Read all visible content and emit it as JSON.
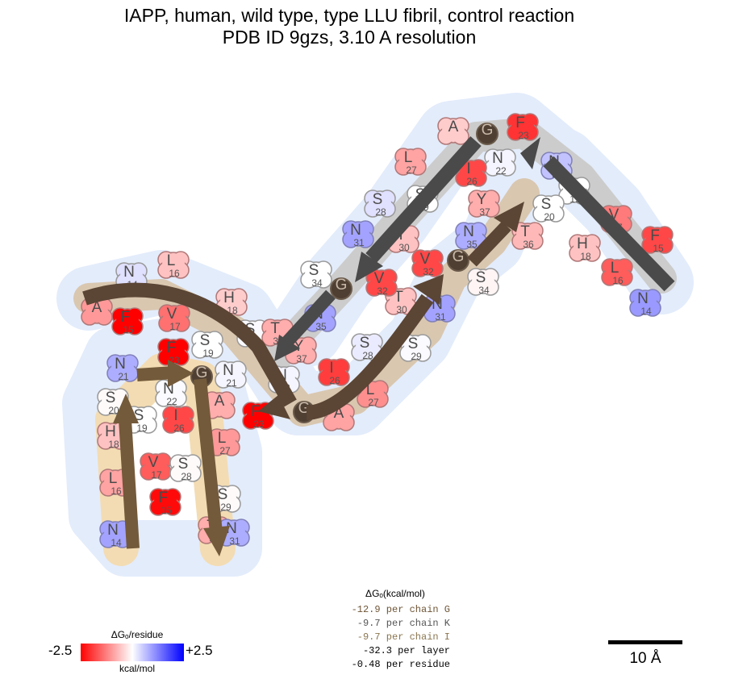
{
  "title": {
    "line1": "IAPP, human, wild type, type LLU fibril, control reaction",
    "line2": "PDB ID 9gzs, 3.10 A resolution"
  },
  "energy_summary": {
    "header": "ΔGₒ(kcal/mol)",
    "rows": [
      {
        "text": "-12.9 per chain G",
        "color": "#6e5536"
      },
      {
        "text": "-9.7 per chain K",
        "color": "#555555"
      },
      {
        "text": "-9.7 per chain I",
        "color": "#8a7650"
      },
      {
        "text": "-32.3 per layer",
        "color": "#000000"
      },
      {
        "text": "-0.48 per residue",
        "color": "#000000"
      }
    ]
  },
  "legend": {
    "title": "ΔGₒ/residue",
    "min_label": "-2.5",
    "max_label": "+2.5",
    "unit": "kcal/mol"
  },
  "scale_bar": {
    "label": "10 Å"
  },
  "colors": {
    "halo": "#e3ecfb",
    "chain_G": "#7a5e3a",
    "chain_K": "#4a4a4a",
    "chain_I": "#5a4632",
    "region_G": "#f3dcb3",
    "region_K": "#c8c8c8",
    "region_I": "#c9b49a"
  },
  "chains": [
    {
      "id": "G",
      "residues": [
        {
          "aa": "N",
          "num": "14",
          "dg": 0.9
        },
        {
          "aa": "L",
          "num": "16",
          "dg": -0.9
        },
        {
          "aa": "H",
          "num": "18",
          "dg": -0.6
        },
        {
          "aa": "S",
          "num": "20",
          "dg": -0.05
        },
        {
          "aa": "N",
          "num": "21",
          "dg": 0.8
        },
        {
          "aa": "F",
          "num": "23",
          "dg": -2.5
        },
        {
          "aa": "V",
          "num": "17",
          "dg": -1.6
        },
        {
          "aa": "F",
          "num": "15",
          "dg": -2.4
        },
        {
          "aa": "S",
          "num": "19",
          "dg": 0.0
        },
        {
          "aa": "N",
          "num": "22",
          "dg": 0.05
        },
        {
          "aa": "I",
          "num": "26",
          "dg": -1.8
        },
        {
          "aa": "S",
          "num": "28",
          "dg": -0.05
        },
        {
          "aa": "G",
          "num": "",
          "dg": 0.0
        },
        {
          "aa": "A",
          "num": "",
          "dg": -0.8
        },
        {
          "aa": "L",
          "num": "27",
          "dg": -1.0
        },
        {
          "aa": "S",
          "num": "29",
          "dg": -0.05
        },
        {
          "aa": "T",
          "num": "30",
          "dg": -0.8
        },
        {
          "aa": "N",
          "num": "31",
          "dg": 0.8
        }
      ]
    },
    {
      "id": "I",
      "residues": [
        {
          "aa": "A",
          "num": "",
          "dg": -1.0
        },
        {
          "aa": "F",
          "num": "15",
          "dg": -2.5
        },
        {
          "aa": "N",
          "num": "14",
          "dg": 0.3
        },
        {
          "aa": "L",
          "num": "16",
          "dg": -0.6
        },
        {
          "aa": "V",
          "num": "17",
          "dg": -1.4
        },
        {
          "aa": "H",
          "num": "18",
          "dg": -0.5
        },
        {
          "aa": "S",
          "num": "19",
          "dg": 0.0
        },
        {
          "aa": "S",
          "num": "20",
          "dg": 0.05
        },
        {
          "aa": "N",
          "num": "21",
          "dg": 0.1
        },
        {
          "aa": "F",
          "num": "23",
          "dg": -2.5
        },
        {
          "aa": "G",
          "num": "",
          "dg": 0.0
        },
        {
          "aa": "A",
          "num": "",
          "dg": -0.9
        },
        {
          "aa": "N",
          "num": "22",
          "dg": 0.1
        },
        {
          "aa": "T",
          "num": "36",
          "dg": -0.8
        },
        {
          "aa": "N",
          "num": "35",
          "dg": 0.9
        },
        {
          "aa": "Y",
          "num": "37",
          "dg": -0.8
        },
        {
          "aa": "I",
          "num": "26",
          "dg": -1.9
        },
        {
          "aa": "L",
          "num": "27",
          "dg": -1.1
        },
        {
          "aa": "S",
          "num": "28",
          "dg": 0.2
        },
        {
          "aa": "S",
          "num": "29",
          "dg": 0.05
        },
        {
          "aa": "T",
          "num": "30",
          "dg": -0.6
        },
        {
          "aa": "N",
          "num": "31",
          "dg": 0.9
        },
        {
          "aa": "V",
          "num": "32",
          "dg": -1.8
        },
        {
          "aa": "G",
          "num": "",
          "dg": 0.0
        },
        {
          "aa": "S",
          "num": "34",
          "dg": -0.1
        }
      ]
    },
    {
      "id": "K",
      "residues": [
        {
          "aa": "N",
          "num": "14",
          "dg": 1.0
        },
        {
          "aa": "F",
          "num": "15",
          "dg": -1.8
        },
        {
          "aa": "L",
          "num": "16",
          "dg": -1.6
        },
        {
          "aa": "V",
          "num": "17",
          "dg": -1.3
        },
        {
          "aa": "H",
          "num": "18",
          "dg": -0.6
        },
        {
          "aa": "S",
          "num": "19",
          "dg": 0.0
        },
        {
          "aa": "S",
          "num": "20",
          "dg": 0.0
        },
        {
          "aa": "N",
          "num": "21",
          "dg": 0.6
        },
        {
          "aa": "F",
          "num": "23",
          "dg": -2.0
        },
        {
          "aa": "G",
          "num": "",
          "dg": 0.0
        },
        {
          "aa": "A",
          "num": "",
          "dg": -0.5
        },
        {
          "aa": "N",
          "num": "22",
          "dg": 0.1
        },
        {
          "aa": "I",
          "num": "26",
          "dg": -1.8
        },
        {
          "aa": "L",
          "num": "27",
          "dg": -0.9
        },
        {
          "aa": "S",
          "num": "28",
          "dg": 0.3
        },
        {
          "aa": "S",
          "num": "29",
          "dg": 0.0
        },
        {
          "aa": "Y",
          "num": "37",
          "dg": -0.8
        },
        {
          "aa": "T",
          "num": "36",
          "dg": -0.7
        },
        {
          "aa": "N",
          "num": "35",
          "dg": 0.8
        },
        {
          "aa": "T",
          "num": "30",
          "dg": -0.6
        },
        {
          "aa": "N",
          "num": "31",
          "dg": 0.9
        },
        {
          "aa": "V",
          "num": "32",
          "dg": -1.8
        },
        {
          "aa": "G",
          "num": "",
          "dg": 0.0
        },
        {
          "aa": "S",
          "num": "34",
          "dg": 0.0
        }
      ]
    }
  ]
}
